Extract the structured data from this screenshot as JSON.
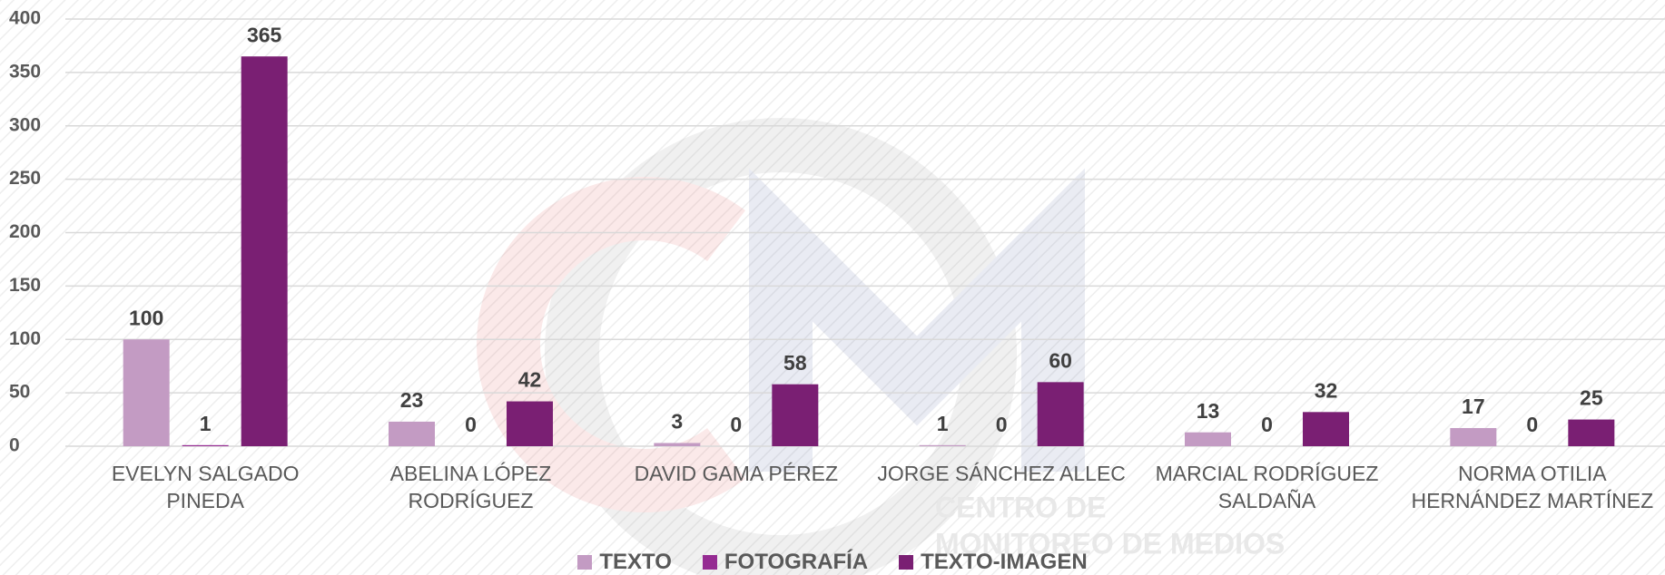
{
  "chart_data": {
    "type": "bar",
    "categories": [
      "EVELYN SALGADO PINEDA",
      "ABELINA LÓPEZ RODRÍGUEZ",
      "DAVID GAMA PÉREZ",
      "JORGE SÁNCHEZ ALLEC",
      "MARCIAL RODRÍGUEZ SALDAÑA",
      "NORMA OTILIA HERNÁNDEZ MARTÍNEZ"
    ],
    "series": [
      {
        "name": "TEXTO",
        "color": "#c39bc3",
        "values": [
          100,
          23,
          3,
          1,
          13,
          17
        ]
      },
      {
        "name": "FOTOGRAFÍA",
        "color": "#952b92",
        "values": [
          1,
          0,
          0,
          0,
          0,
          0
        ]
      },
      {
        "name": "TEXTO-IMAGEN",
        "color": "#7a1f73",
        "values": [
          365,
          42,
          58,
          60,
          32,
          25
        ]
      }
    ],
    "ylim": [
      0,
      400
    ],
    "yticks": [
      0,
      50,
      100,
      150,
      200,
      250,
      300,
      350,
      400
    ],
    "grid": true,
    "legend": "bottom",
    "watermark": [
      "CENTRO DE",
      "MONITOREO DE MEDIOS"
    ]
  }
}
